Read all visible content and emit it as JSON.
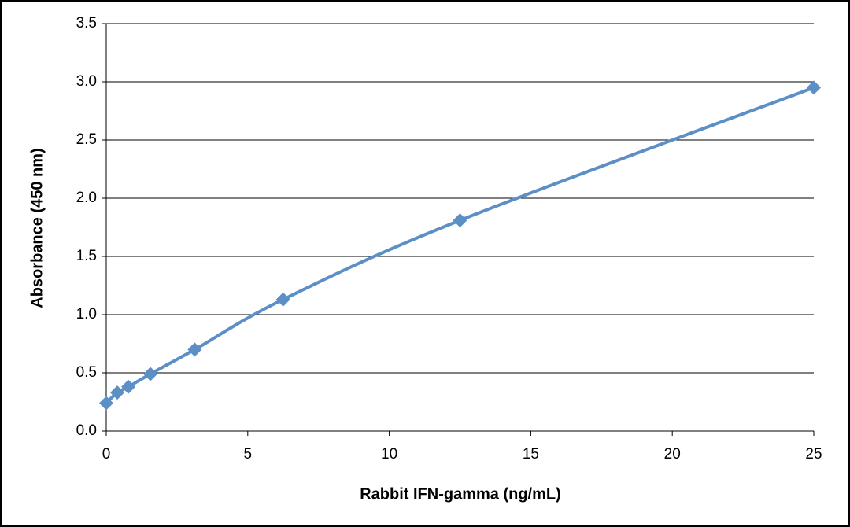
{
  "chart_data": {
    "type": "line",
    "x_label": "Rabbit IFN-gamma (ng/mL)",
    "y_label": "Absorbance  (450  nm)",
    "x": [
      0,
      0.39,
      0.78,
      1.56,
      3.125,
      6.25,
      12.5,
      25
    ],
    "series": [
      {
        "color": "#5b8fc6",
        "values": [
          0.24,
          0.33,
          0.38,
          0.49,
          0.7,
          1.13,
          1.81,
          2.95
        ]
      }
    ],
    "xlim": [
      0,
      25
    ],
    "xticks": [
      0,
      5,
      10,
      15,
      20,
      25
    ],
    "ylim": [
      0,
      3.5
    ],
    "yticks": [
      {
        "value": 0,
        "label": "0.0"
      },
      0.5,
      {
        "value": 1,
        "label": "1.0"
      },
      1.5,
      {
        "value": 2,
        "label": "2.0"
      },
      2.5,
      {
        "value": 3,
        "label": "3.0"
      },
      3.5
    ],
    "grid": true,
    "smooth": true
  }
}
